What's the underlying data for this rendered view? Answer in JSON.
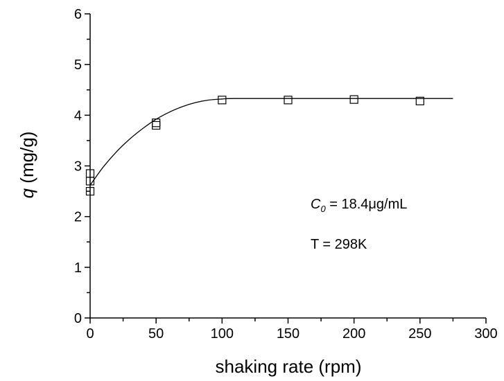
{
  "chart_data": {
    "type": "scatter",
    "title": "",
    "xlabel": "shaking rate (rpm)",
    "ylabel_var": "q",
    "ylabel_unit": " (mg/g)",
    "xlim": [
      0,
      300
    ],
    "ylim": [
      0,
      6
    ],
    "x_ticks": [
      0,
      50,
      100,
      150,
      200,
      250,
      300
    ],
    "y_ticks": [
      0,
      1,
      2,
      3,
      4,
      5,
      6
    ],
    "grid": false,
    "series": [
      {
        "marker": "open-square",
        "x": [
          0,
          0,
          0,
          50,
          50,
          100,
          150,
          200,
          250
        ],
        "y": [
          2.5,
          2.7,
          2.85,
          3.8,
          3.85,
          4.3,
          4.3,
          4.31,
          4.28
        ]
      }
    ],
    "fit_curve": {
      "x": [
        0,
        10,
        20,
        30,
        40,
        50,
        60,
        70,
        80,
        90,
        100,
        110,
        150,
        200,
        250,
        275
      ],
      "y": [
        2.62,
        2.98,
        3.28,
        3.53,
        3.74,
        3.92,
        4.06,
        4.17,
        4.25,
        4.3,
        4.32,
        4.33,
        4.33,
        4.33,
        4.33,
        4.33
      ]
    },
    "annotations": {
      "c0_var": "C",
      "c0_sub": "0",
      "c0_rest": " = 18.4μg/mL",
      "temperature": "T = 298K"
    }
  }
}
